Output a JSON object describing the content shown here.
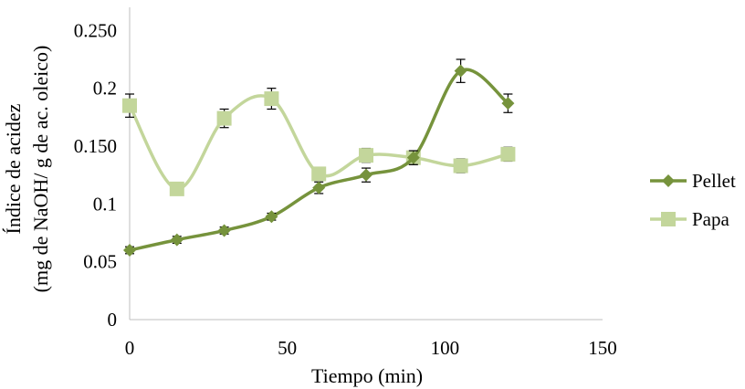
{
  "chart_data": {
    "type": "line",
    "xlabel": "Tiempo (min)",
    "ylabel_line1": "Índice de acidez",
    "ylabel_line2": "(mg de NaOH/ g de ac. oleico)",
    "xlim": [
      0,
      150
    ],
    "ylim": [
      0,
      0.27
    ],
    "x_ticks": [
      {
        "value": 0,
        "label": "0"
      },
      {
        "value": 50,
        "label": "50"
      },
      {
        "value": 100,
        "label": "100"
      },
      {
        "value": 150,
        "label": "150"
      }
    ],
    "y_ticks": [
      {
        "value": 0,
        "label": "0"
      },
      {
        "value": 0.05,
        "label": "0.05"
      },
      {
        "value": 0.1,
        "label": "0.1"
      },
      {
        "value": 0.15,
        "label": "0.150"
      },
      {
        "value": 0.2,
        "label": "0.2"
      },
      {
        "value": 0.25,
        "label": "0.250"
      }
    ],
    "grid": false,
    "legend_position": "right",
    "series": [
      {
        "name": "Pellet",
        "marker": "diamond",
        "color": "#76933c",
        "x": [
          0,
          15,
          30,
          45,
          60,
          75,
          90,
          105,
          120
        ],
        "y": [
          0.06,
          0.069,
          0.077,
          0.089,
          0.114,
          0.125,
          0.14,
          0.215,
          0.187
        ],
        "err": [
          0.003,
          0.003,
          0.003,
          0.003,
          0.005,
          0.006,
          0.006,
          0.01,
          0.008
        ]
      },
      {
        "name": "Papa",
        "marker": "square",
        "color": "#c3d69b",
        "x": [
          0,
          15,
          30,
          45,
          60,
          75,
          90,
          105,
          120
        ],
        "y": [
          0.185,
          0.113,
          0.174,
          0.191,
          0.126,
          0.142,
          0.14,
          0.133,
          0.143
        ],
        "err": [
          0.01,
          0.004,
          0.008,
          0.009,
          0.005,
          0.006,
          0.006,
          0.006,
          0.006
        ]
      }
    ]
  }
}
